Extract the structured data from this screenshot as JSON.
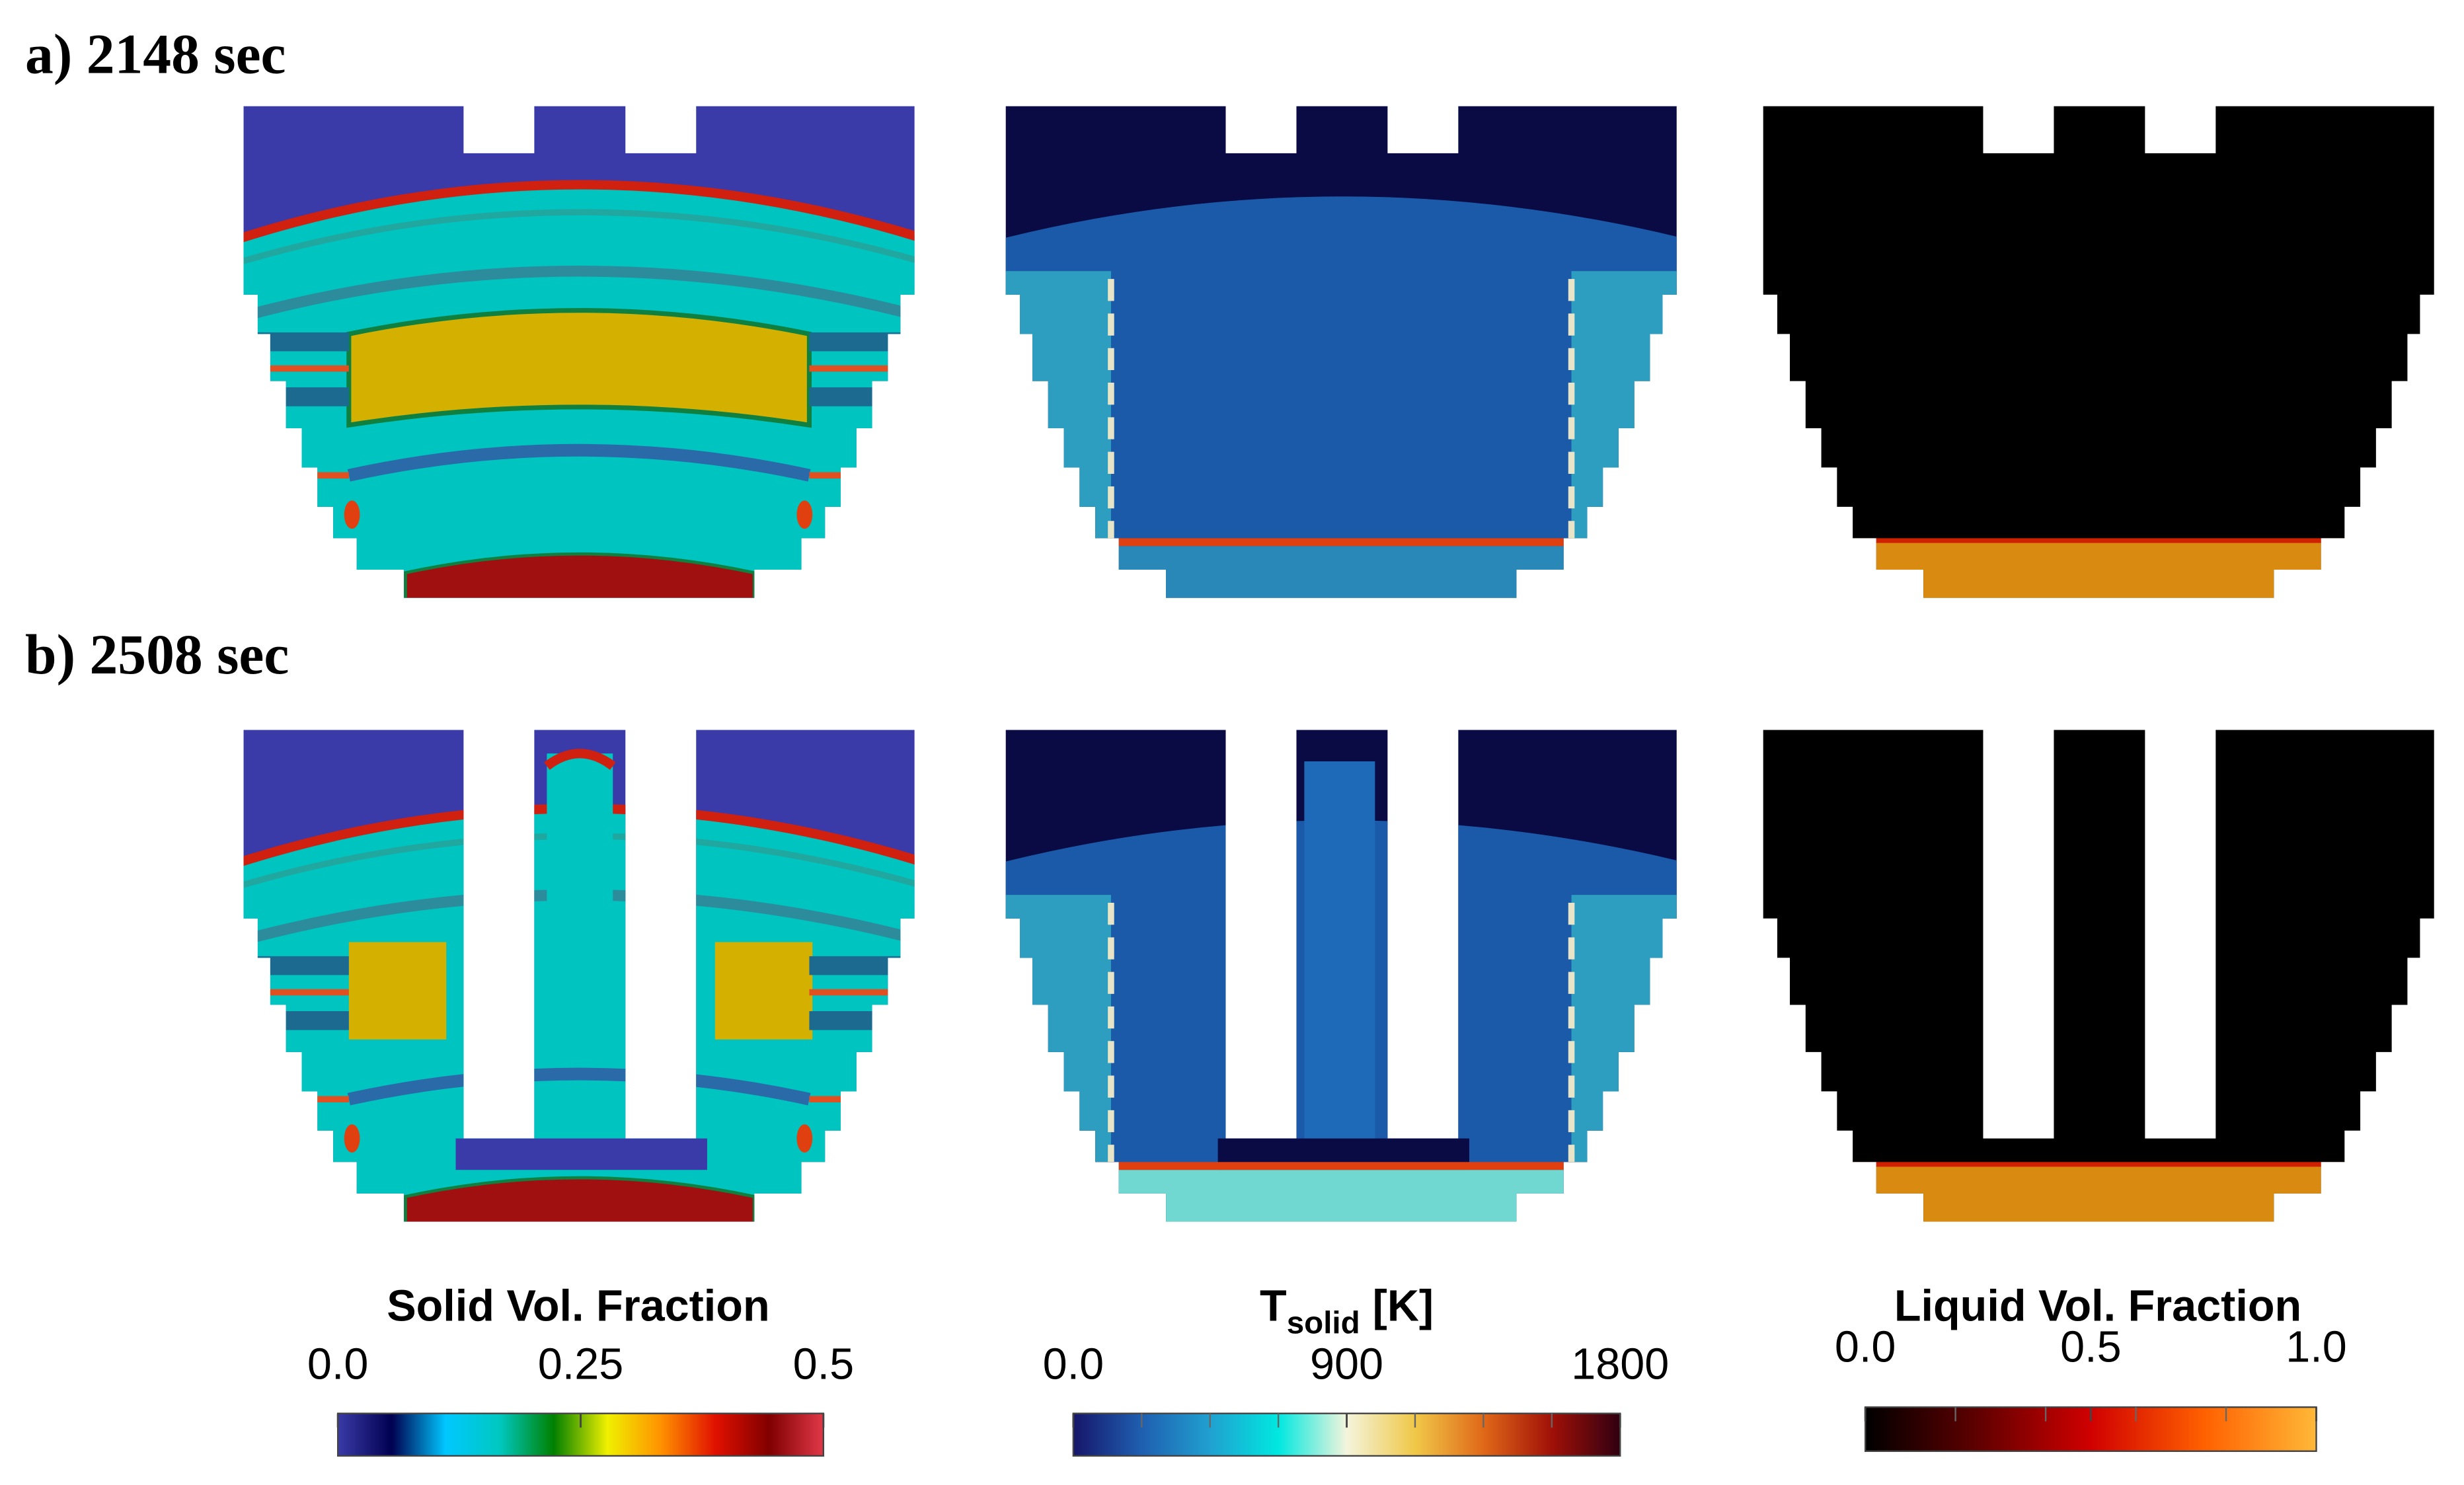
{
  "rows": [
    {
      "label": "a) 2148 sec"
    },
    {
      "label": "b) 2508 sec"
    }
  ],
  "colorbars": [
    {
      "title": "Solid Vol. Fraction",
      "lim": [
        0,
        0.5
      ],
      "ticks": [
        {
          "value": 0,
          "label": "0.0"
        },
        0.25,
        0.5
      ],
      "minor_ticks": [],
      "colormap": [
        "#3a3aa8",
        "#000050",
        "#00c8ff",
        "#00c8c0",
        "#008000",
        "#f0f000",
        "#ff9000",
        "#e01000",
        "#800000",
        "#e03848"
      ]
    },
    {
      "title": "T",
      "title_subscript": "solid",
      "title_suffix": "[K]",
      "lim": [
        0,
        1800
      ],
      "ticks": [
        {
          "value": 0,
          "label": "0.0"
        },
        900,
        1800
      ],
      "minor_ticks": [
        225,
        450,
        675,
        1125,
        1350,
        1575
      ],
      "colormap": [
        "#16166a",
        "#1f5fb0",
        "#20a0d0",
        "#00e8e0",
        "#f4f4dc",
        "#f0c848",
        "#e06818",
        "#a01008",
        "#300010"
      ]
    },
    {
      "title": "Liquid Vol. Fraction",
      "lim": [
        0,
        1
      ],
      "ticks": [
        {
          "value": 0,
          "label": "0.0"
        },
        0.5,
        {
          "value": 1,
          "label": "1.0"
        }
      ],
      "minor_ticks": [
        0.2,
        0.4,
        0.6,
        0.8
      ],
      "colormap": [
        "#000000",
        "#600000",
        "#d00000",
        "#ff6000",
        "#ffb838"
      ]
    }
  ]
}
